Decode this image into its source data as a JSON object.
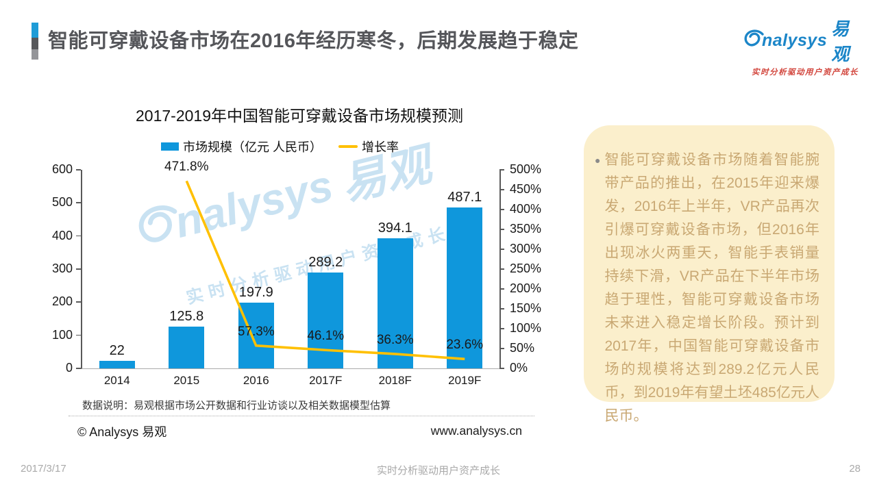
{
  "header": {
    "title": "智能可穿戴设备市场在2016年经历寒冬，后期发展趋于稳定"
  },
  "logo": {
    "latin": "nalysys",
    "cn": "易观",
    "tagline": "实时分析驱动用户资产成长"
  },
  "chart_data": {
    "type": "combo",
    "title": "2017-2019年中国智能可穿戴设备市场规模预测",
    "categories": [
      "2014",
      "2015",
      "2016",
      "2017F",
      "2018F",
      "2019F"
    ],
    "series": [
      {
        "name": "市场规模（亿元 人民币）",
        "chart": "bar",
        "axis": "left",
        "color": "#0F97DC",
        "values": [
          22,
          125.8,
          197.9,
          289.2,
          394.1,
          487.1
        ]
      },
      {
        "name": "增长率",
        "chart": "line",
        "axis": "right",
        "unit": "%",
        "color": "#FFC000",
        "values": [
          null,
          471.8,
          57.3,
          46.1,
          36.3,
          23.6
        ]
      }
    ],
    "left_axis": {
      "min": 0,
      "max": 600,
      "step": 100
    },
    "right_axis": {
      "min": 0,
      "max": 500,
      "step": 50,
      "suffix": "%"
    },
    "legend_position": "top",
    "grid": false
  },
  "chart_note": "数据说明：易观根据市场公开数据和行业访谈以及相关数据模型估算",
  "watermark": {
    "latin": "nalysys",
    "cn": "易观",
    "tagline": "实时分析驱动用户资产成长"
  },
  "copyright": "© Analysys 易观",
  "website": "www.analysys.cn",
  "sidebar": {
    "text": "智能可穿戴设备市场随着智能腕带产品的推出，在2015年迎来爆发，2016年上半年，VR产品再次引爆可穿戴设备市场，但2016年出现冰火两重天，智能手表销量持续下滑，VR产品在下半年市场趋于理性，智能可穿戴设备市场未来进入稳定增长阶段。预计到2017年，中国智能可穿戴设备市场的规模将达到289.2亿元人民币，到2019年有望土坯485亿元人民币。"
  },
  "footer": {
    "date": "2017/3/17",
    "tagline": "实时分析驱动用户资产成长",
    "page": "28"
  }
}
